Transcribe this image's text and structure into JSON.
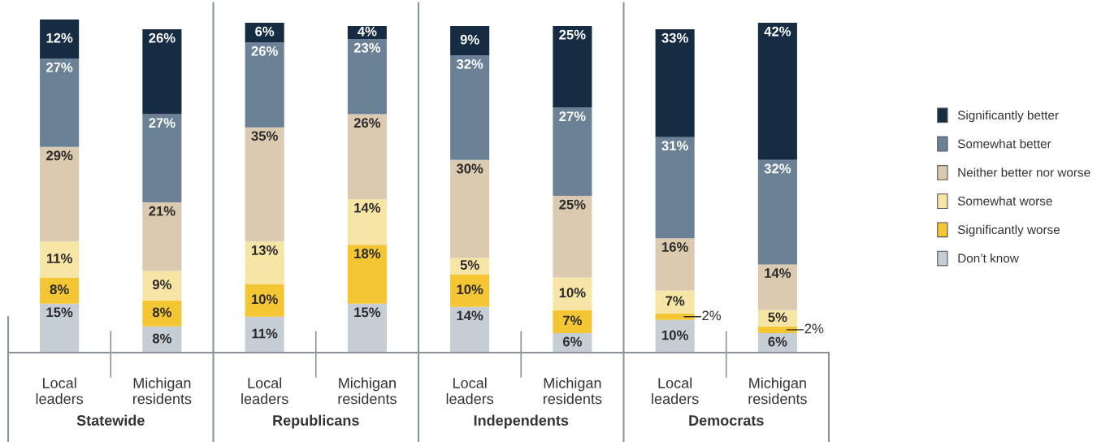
{
  "chart_data": {
    "type": "bar",
    "stacked": true,
    "legend": "right",
    "grid": false,
    "categories": [
      "Local\nleaders",
      "Michigan\nresidents",
      "Local\nleaders",
      "Michigan\nresidents",
      "Local\nleaders",
      "Michigan\nresidents",
      "Local\nleaders",
      "Michigan\nresidents"
    ],
    "annotations": [
      "Statewide",
      "Republicans",
      "Independents",
      "Democrats"
    ],
    "series": [
      {
        "name": "Don’t know",
        "color": "#c5ced5",
        "values": [
          15,
          8,
          11,
          15,
          14,
          6,
          10,
          6
        ],
        "value_labels": [
          "15%",
          "8%",
          "11%",
          "15%",
          "14%",
          "6%",
          "10%",
          "6%"
        ]
      },
      {
        "name": "Significantly worse",
        "color": "#f5c633",
        "values": [
          8,
          8,
          10,
          18,
          10,
          7,
          2,
          2
        ],
        "value_labels": [
          "8%",
          "8%",
          "10%",
          "18%",
          "10%",
          "7%",
          "2%",
          "2%"
        ]
      },
      {
        "name": "Somewhat worse",
        "color": "#f7e5a6",
        "values": [
          11,
          9,
          13,
          14,
          5,
          10,
          7,
          5
        ],
        "value_labels": [
          "11%",
          "9%",
          "13%",
          "14%",
          "5%",
          "10%",
          "7%",
          "5%"
        ]
      },
      {
        "name": "Neither better nor worse",
        "color": "#dccab0",
        "values": [
          29,
          21,
          35,
          26,
          30,
          25,
          16,
          14
        ],
        "value_labels": [
          "29%",
          "21%",
          "35%",
          "26%",
          "30%",
          "25%",
          "16%",
          "14%"
        ]
      },
      {
        "name": "Somewhat better",
        "color": "#6b8196",
        "values": [
          27,
          27,
          26,
          23,
          32,
          27,
          31,
          32
        ],
        "value_labels": [
          "27%",
          "27%",
          "26%",
          "23%",
          "32%",
          "27%",
          "31%",
          "32%"
        ]
      },
      {
        "name": "Significantly better",
        "color": "#162c43",
        "values": [
          12,
          26,
          6,
          4,
          9,
          25,
          33,
          42
        ],
        "value_labels": [
          "12%",
          "26%",
          "6%",
          "4%",
          "9%",
          "25%",
          "33%",
          "42%"
        ]
      }
    ]
  }
}
